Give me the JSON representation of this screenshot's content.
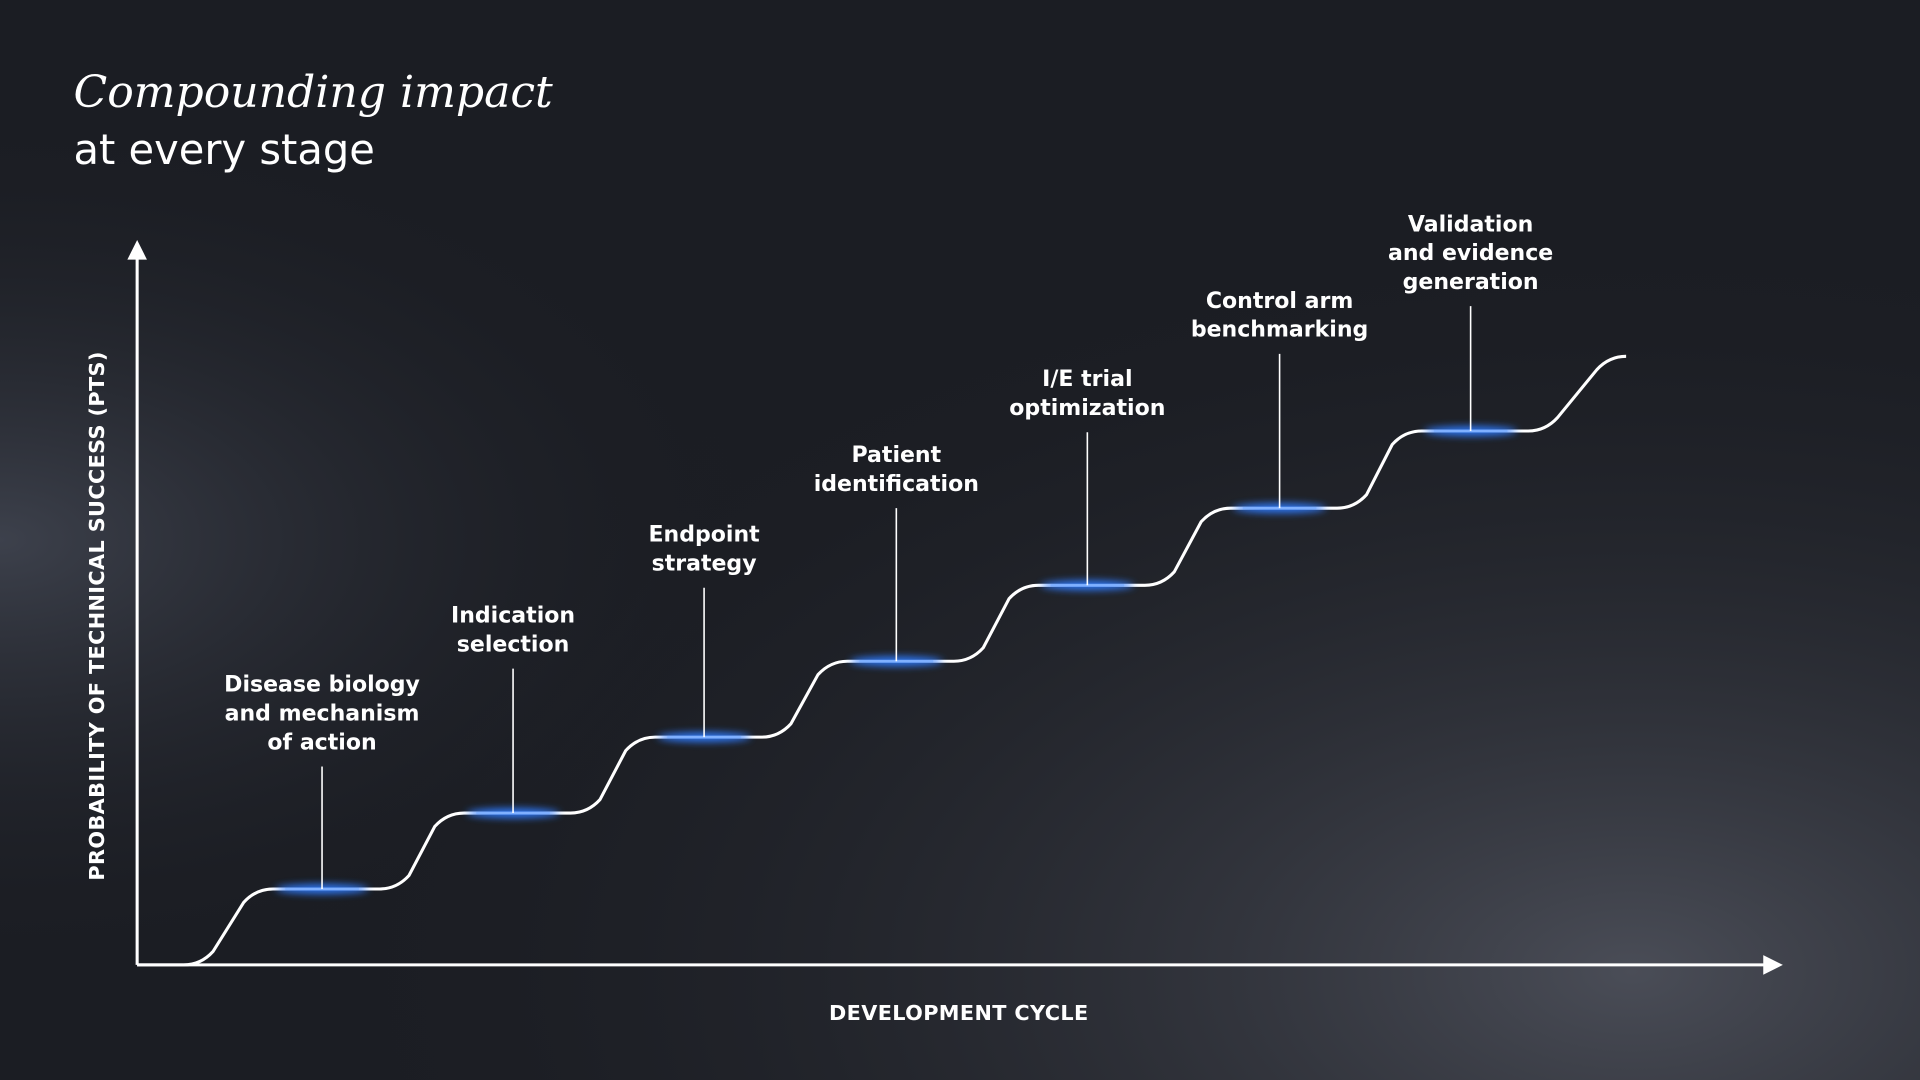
{
  "title": {
    "emphasis": "Compounding impact",
    "rest": "at every stage"
  },
  "y_axis_label": "PROBABILITY OF TECHNICAL SUCCESS (PTS)",
  "x_axis_label": "DEVELOPMENT CYCLE",
  "stages": [
    {
      "lines": [
        "Disease biology",
        "and mechanism",
        "of action"
      ]
    },
    {
      "lines": [
        "Indication",
        "selection"
      ]
    },
    {
      "lines": [
        "Endpoint",
        "strategy"
      ]
    },
    {
      "lines": [
        "Patient",
        "identification"
      ]
    },
    {
      "lines": [
        "I/E trial",
        "optimization"
      ]
    },
    {
      "lines": [
        "Control arm",
        "benchmarking"
      ]
    },
    {
      "lines": [
        "Validation",
        "and evidence",
        "generation"
      ]
    }
  ]
}
